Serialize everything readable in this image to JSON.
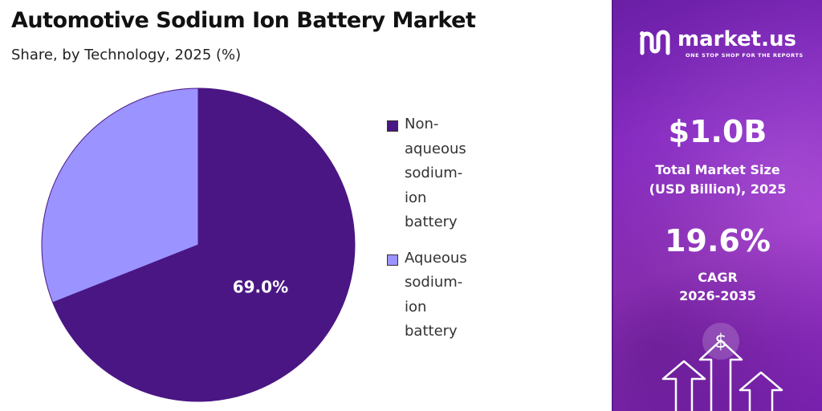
{
  "header": {
    "title": "Automotive Sodium Ion Battery Market",
    "subtitle": "Share, by Technology, 2025 (%)"
  },
  "chart_data": {
    "type": "pie",
    "title": "Automotive Sodium Ion Battery Market",
    "subtitle": "Share, by Technology, 2025 (%)",
    "slices": [
      {
        "label": "Non-aqueous sodium-ion battery",
        "value": 69.0,
        "display": "69.0%",
        "color": "#4a1684"
      },
      {
        "label": "Aqueous sodium-ion battery",
        "value": 31.0,
        "color": "#9b93ff"
      }
    ],
    "legend_position": "right"
  },
  "legend": {
    "items": [
      {
        "lines": [
          "Non-",
          "aqueous",
          "sodium-",
          "ion",
          "battery"
        ],
        "color": "#4a1684"
      },
      {
        "lines": [
          "Aqueous",
          "sodium-",
          "ion",
          "battery"
        ],
        "color": "#9b93ff"
      }
    ]
  },
  "brand": {
    "name": "market.us",
    "tagline": "ONE STOP SHOP FOR THE REPORTS",
    "logo_icon": "market-us-logo-icon"
  },
  "stats": {
    "market_size_value": "$1.0B",
    "market_size_label_1": "Total Market Size",
    "market_size_label_2": "(USD Billion), 2025",
    "cagr_value": "19.6%",
    "cagr_label_1": "CAGR",
    "cagr_label_2": "2026-2035"
  },
  "decor": {
    "dollar_icon": "dollar-icon",
    "dollar_symbol": "$",
    "arrows_icon": "growth-arrows-icon"
  },
  "colors": {
    "accent_dark": "#4a1684",
    "accent_light": "#9b93ff",
    "panel_purple": "#8a2bc4"
  }
}
